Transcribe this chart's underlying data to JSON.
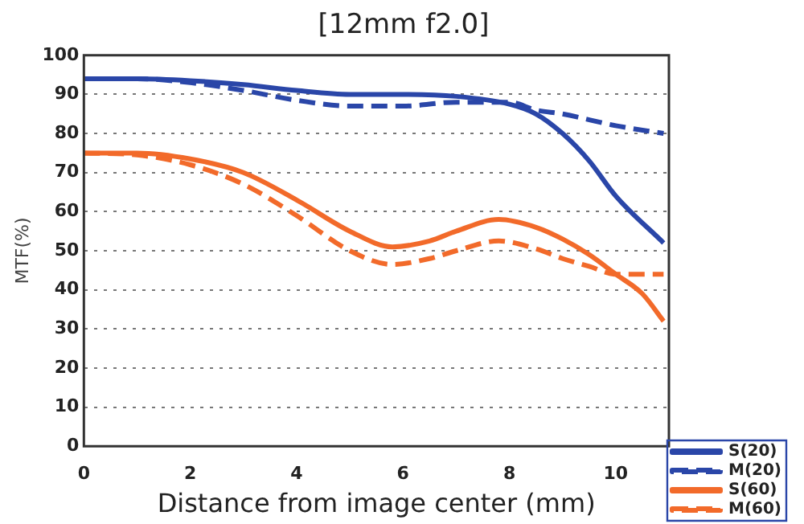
{
  "chart_data": {
    "type": "line",
    "title": "[12mm f2.0]",
    "xlabel": "Distance from image center (mm)",
    "ylabel": "MTF(%)",
    "xlim": [
      0,
      11
    ],
    "xticks": [
      0,
      2,
      4,
      6,
      8,
      10
    ],
    "ylim": [
      0,
      100
    ],
    "yticks": [
      0,
      10,
      20,
      30,
      40,
      50,
      60,
      70,
      80,
      90,
      100
    ],
    "grid": "y",
    "legend": "bottom right",
    "marker": "none",
    "series": [
      {
        "name": "S(20)",
        "color": "#2a46a8",
        "line_style": "solid",
        "x": [
          0,
          1,
          2,
          3,
          4,
          5,
          6,
          7,
          8,
          8.5,
          9,
          9.5,
          10,
          10.9
        ],
        "values": [
          94,
          94,
          93.5,
          92.5,
          91,
          90,
          90,
          89.5,
          87.5,
          85,
          80,
          73,
          64,
          52
        ]
      },
      {
        "name": "M(20)",
        "color": "#2a46a8",
        "line_style": "dashed",
        "x": [
          0,
          1,
          2,
          3,
          4,
          5,
          6,
          7,
          8,
          8.5,
          9,
          10,
          10.9
        ],
        "values": [
          94,
          94,
          93,
          91,
          88.5,
          87,
          87,
          88,
          88,
          86,
          85,
          82,
          80
        ]
      },
      {
        "name": "S(60)",
        "color": "#f26a2a",
        "line_style": "solid",
        "x": [
          0,
          1,
          2,
          3,
          4,
          5,
          5.8,
          6.5,
          7,
          7.8,
          8.5,
          9,
          9.5,
          10,
          10.5,
          10.9
        ],
        "values": [
          75,
          75,
          73.5,
          70,
          63,
          55,
          51,
          52.5,
          55,
          58,
          56,
          53,
          49,
          44,
          39,
          32
        ]
      },
      {
        "name": "M(60)",
        "color": "#f26a2a",
        "line_style": "dashed",
        "x": [
          0,
          1,
          2,
          3,
          4,
          5,
          5.8,
          6.5,
          7,
          7.8,
          8.5,
          9,
          9.5,
          10,
          10.5,
          10.9
        ],
        "values": [
          75,
          74.5,
          72,
          67,
          59,
          50,
          46.5,
          48,
          50,
          52.5,
          50.5,
          48,
          46,
          44,
          44,
          44
        ]
      }
    ]
  }
}
